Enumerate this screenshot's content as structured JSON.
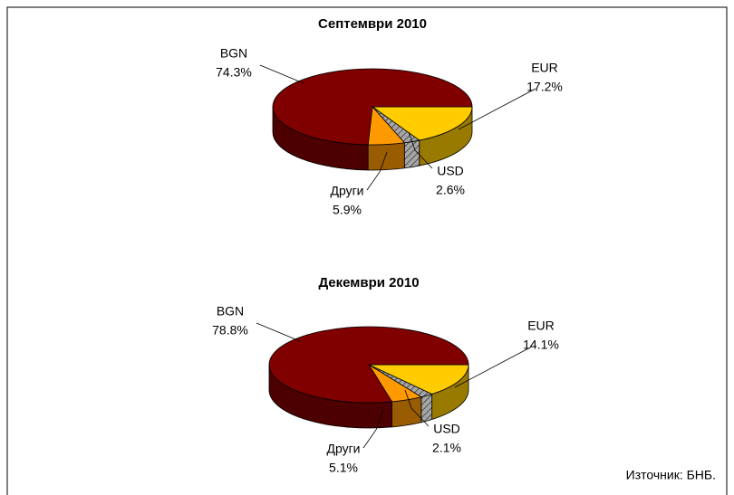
{
  "chart_data": [
    {
      "type": "pie3d",
      "title": "Септември 2010",
      "categories": [
        "EUR",
        "USD",
        "Други",
        "BGN"
      ],
      "values": [
        17.2,
        2.6,
        5.9,
        74.3
      ],
      "value_labels": [
        "17.2%",
        "2.6%",
        "5.9%",
        "74.3%"
      ],
      "colors": [
        "#ffcc00",
        "#a6a6a6",
        "#ff9900",
        "#800000"
      ]
    },
    {
      "type": "pie3d",
      "title": "Декември 2010",
      "categories": [
        "EUR",
        "USD",
        "Други",
        "BGN"
      ],
      "values": [
        14.1,
        2.1,
        5.1,
        78.8
      ],
      "value_labels": [
        "14.1%",
        "2.1%",
        "5.1%",
        "78.8%"
      ],
      "colors": [
        "#ffcc00",
        "#a6a6a6",
        "#ff9900",
        "#800000"
      ]
    }
  ],
  "source": "Източник: БНБ."
}
